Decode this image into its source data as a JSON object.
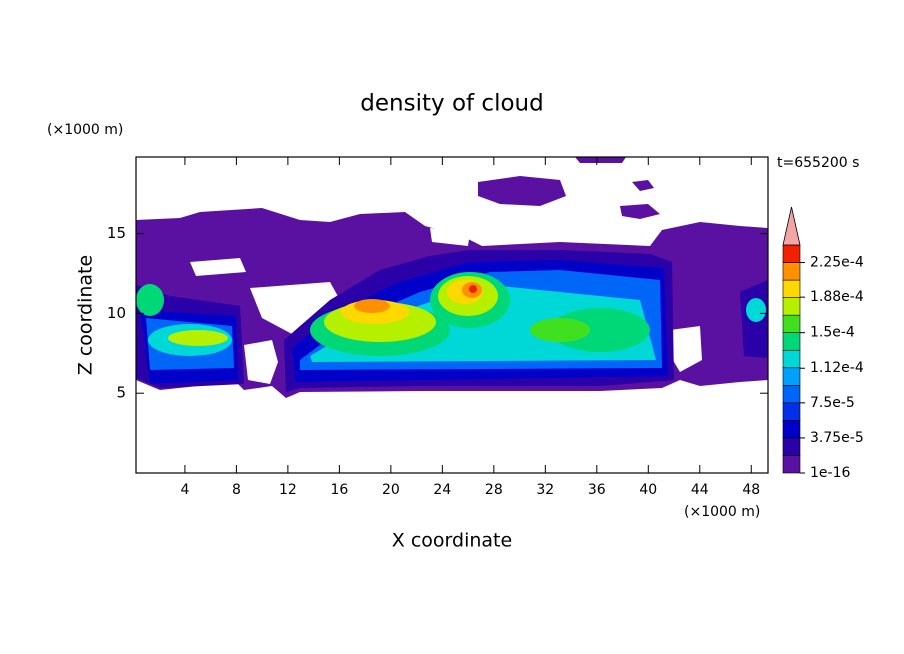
{
  "chart_data": {
    "type": "contour",
    "title": "density of cloud",
    "x_label": "X coordinate",
    "y_label": "Z coordinate",
    "x_unit": "(×1000 m)",
    "y_unit": "(×1000 m)",
    "annotation": "t=655200 s",
    "xlim": [
      0.2,
      49.3
    ],
    "ylim": [
      0,
      19.8
    ],
    "xticks": [
      4,
      8,
      12,
      16,
      20,
      24,
      28,
      32,
      36,
      40,
      44,
      48
    ],
    "yticks": [
      5,
      10,
      15
    ],
    "colorbar": {
      "clim": [
        1e-16,
        0.00024375
      ],
      "ticks": [
        1e-16,
        {
          "value": 3.75e-05,
          "label": "3.75e-5"
        },
        {
          "value": 7.5e-05,
          "label": "7.5e-5"
        },
        {
          "value": 0.000112,
          "label": "1.12e-4"
        },
        {
          "value": 0.00015,
          "label": "1.5e-4"
        },
        {
          "value": 0.000188,
          "label": "1.88e-4"
        },
        {
          "value": 0.000225,
          "label": "2.25e-4"
        }
      ],
      "colors": [
        "#5a10a0",
        "#2a00a8",
        "#0000c8",
        "#0030e8",
        "#0066f8",
        "#00a0ff",
        "#00d8d8",
        "#00d878",
        "#40e020",
        "#b4f000",
        "#ffd800",
        "#ff9000",
        "#f02000"
      ],
      "extend": "max",
      "extend_color": "#f4a4a4"
    }
  }
}
